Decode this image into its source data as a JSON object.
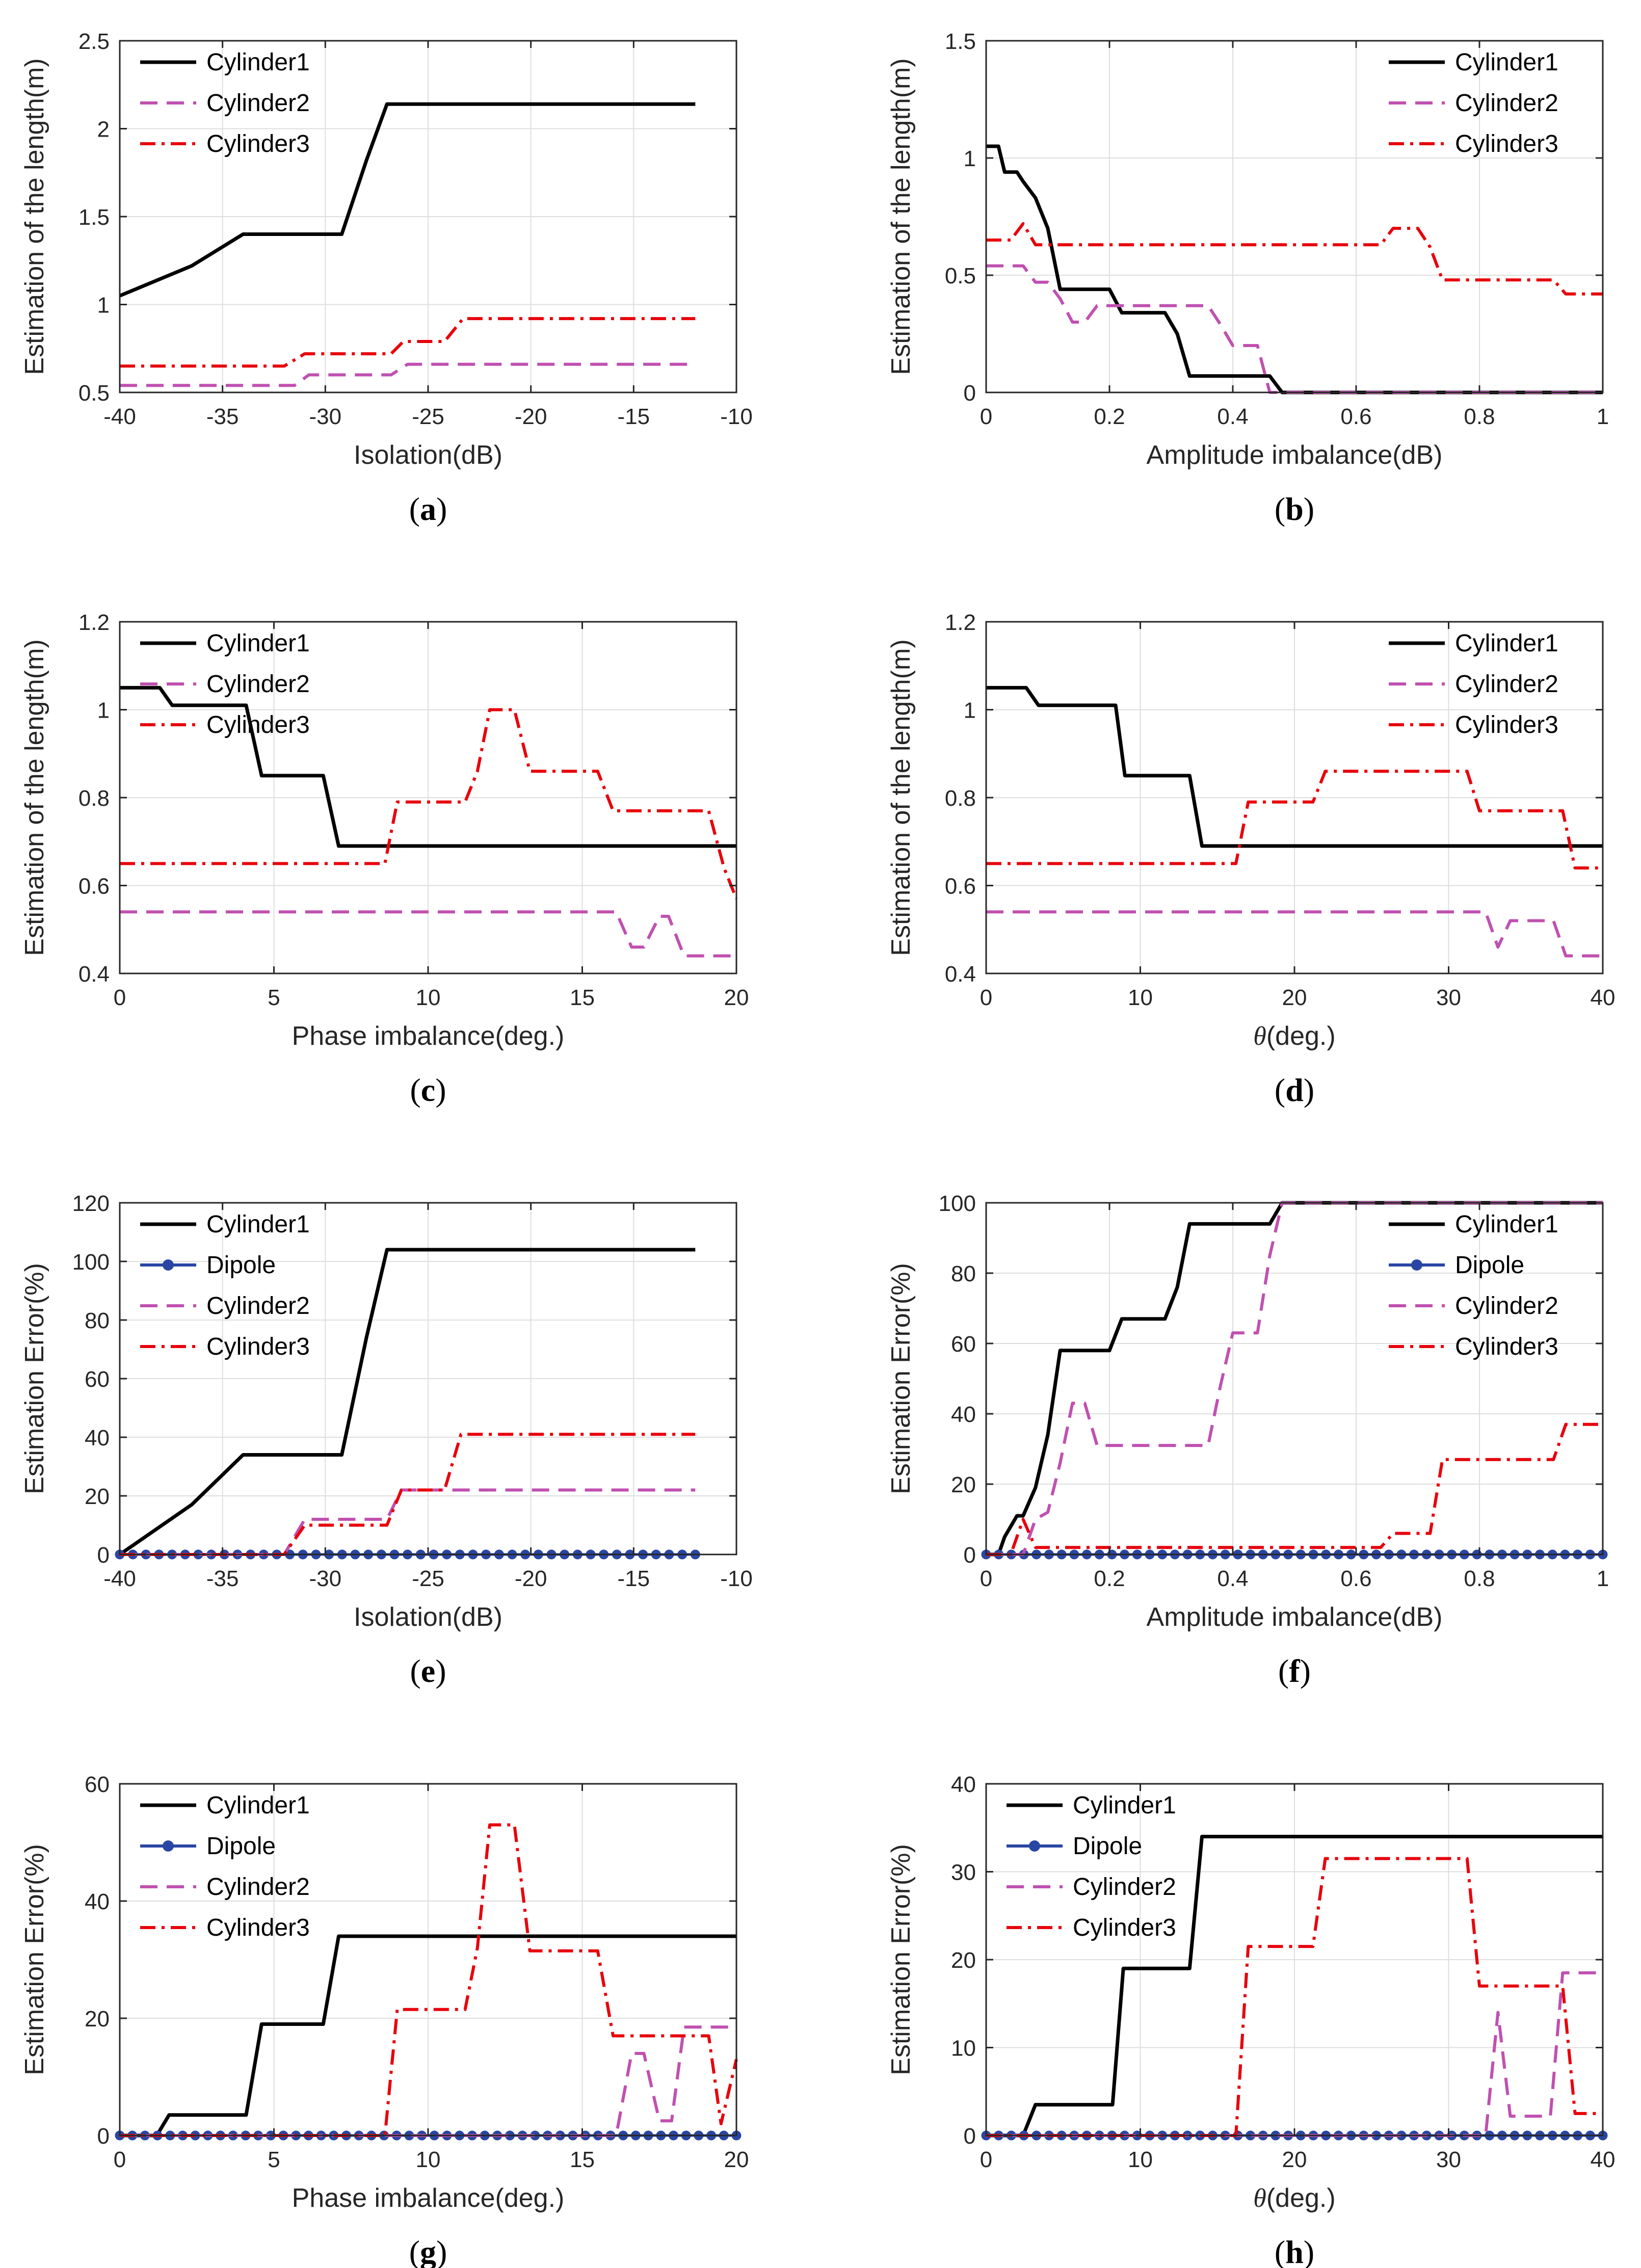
{
  "figure": {
    "series_styles": {
      "Cylinder1": {
        "color": "#000000",
        "dash": "solid"
      },
      "Cylinder2": {
        "color": "#c050b0",
        "dash": "dashed"
      },
      "Cylinder3": {
        "color": "#e8000b",
        "dash": "dashdot"
      },
      "Dipole": {
        "color": "#2a46a3",
        "dash": "solid-marker"
      }
    }
  },
  "chart_data": [
    {
      "id": "a",
      "type": "line",
      "caption_letter": "a",
      "xlabel": "Isolation(dB)",
      "ylabel": "Estimation of the length(m)",
      "xlabel_italic_prefix": "",
      "xlim": [
        -40,
        -10
      ],
      "ylim": [
        0.5,
        2.5
      ],
      "xticks": [
        -40,
        -35,
        -30,
        -25,
        -20,
        -15,
        -10
      ],
      "yticks": [
        0.5,
        1,
        1.5,
        2,
        2.5
      ],
      "xtick_labels": [
        "-40",
        "-35",
        "-30",
        "-25",
        "-20",
        "-15",
        "-10"
      ],
      "ytick_labels": [
        "0.5",
        "1",
        "1.5",
        "2",
        "2.5"
      ],
      "legend": [
        "Cylinder1",
        "Cylinder2",
        "Cylinder3"
      ],
      "series": [
        {
          "name": "Cylinder1",
          "x": [
            -40,
            -36.5,
            -34,
            -30,
            -29.2,
            -28,
            -27,
            -12
          ],
          "y": [
            1.05,
            1.22,
            1.4,
            1.4,
            1.4,
            1.82,
            2.14,
            2.14
          ]
        },
        {
          "name": "Cylinder2",
          "x": [
            -40,
            -31.5,
            -30.8,
            -26.8,
            -26,
            -12
          ],
          "y": [
            0.54,
            0.54,
            0.6,
            0.6,
            0.66,
            0.66
          ]
        },
        {
          "name": "Cylinder3",
          "x": [
            -40,
            -32,
            -31,
            -26.8,
            -26.2,
            -24.2,
            -23.3,
            -12
          ],
          "y": [
            0.65,
            0.65,
            0.72,
            0.72,
            0.79,
            0.79,
            0.92,
            0.92
          ]
        }
      ]
    },
    {
      "id": "b",
      "type": "line",
      "caption_letter": "b",
      "xlabel": "Amplitude imbalance(dB)",
      "ylabel": "Estimation of the length(m)",
      "xlabel_italic_prefix": "",
      "xlim": [
        0,
        1
      ],
      "ylim": [
        0,
        1.5
      ],
      "xticks": [
        0,
        0.2,
        0.4,
        0.6,
        0.8,
        1
      ],
      "yticks": [
        0,
        0.5,
        1,
        1.5
      ],
      "xtick_labels": [
        "0",
        "0.2",
        "0.4",
        "0.6",
        "0.8",
        "1"
      ],
      "ytick_labels": [
        "0",
        "0.5",
        "1",
        "1.5"
      ],
      "legend": [
        "Cylinder1",
        "Cylinder2",
        "Cylinder3"
      ],
      "series": [
        {
          "name": "Cylinder1",
          "x": [
            0,
            0.02,
            0.03,
            0.05,
            0.06,
            0.08,
            0.1,
            0.12,
            0.2,
            0.22,
            0.29,
            0.31,
            0.33,
            0.46,
            0.48,
            1.0
          ],
          "y": [
            1.05,
            1.05,
            0.94,
            0.94,
            0.9,
            0.83,
            0.7,
            0.44,
            0.44,
            0.34,
            0.34,
            0.25,
            0.07,
            0.07,
            0.0,
            0.0
          ]
        },
        {
          "name": "Cylinder2",
          "x": [
            0,
            0.06,
            0.08,
            0.1,
            0.12,
            0.14,
            0.16,
            0.18,
            0.2,
            0.36,
            0.38,
            0.4,
            0.44,
            0.46,
            1.0
          ],
          "y": [
            0.54,
            0.54,
            0.47,
            0.47,
            0.4,
            0.3,
            0.3,
            0.37,
            0.37,
            0.37,
            0.29,
            0.2,
            0.2,
            0.0,
            0.0
          ]
        },
        {
          "name": "Cylinder3",
          "x": [
            0,
            0.04,
            0.06,
            0.08,
            0.64,
            0.66,
            0.7,
            0.72,
            0.74,
            0.92,
            0.94,
            1.0
          ],
          "y": [
            0.65,
            0.65,
            0.72,
            0.63,
            0.63,
            0.7,
            0.7,
            0.62,
            0.48,
            0.48,
            0.42,
            0.42
          ]
        }
      ]
    },
    {
      "id": "c",
      "type": "line",
      "caption_letter": "c",
      "xlabel": "Phase imbalance(deg.)",
      "ylabel": "Estimation of the length(m)",
      "xlabel_italic_prefix": "",
      "xlim": [
        0,
        20
      ],
      "ylim": [
        0.4,
        1.2
      ],
      "xticks": [
        0,
        5,
        10,
        15,
        20
      ],
      "yticks": [
        0.4,
        0.6,
        0.8,
        1,
        1.2
      ],
      "xtick_labels": [
        "0",
        "5",
        "10",
        "15",
        "20"
      ],
      "ytick_labels": [
        "0.4",
        "0.6",
        "0.8",
        "1",
        "1.2"
      ],
      "legend": [
        "Cylinder1",
        "Cylinder2",
        "Cylinder3"
      ],
      "series": [
        {
          "name": "Cylinder1",
          "x": [
            0,
            1.3,
            1.7,
            4.1,
            4.6,
            6.6,
            7.1,
            20
          ],
          "y": [
            1.05,
            1.05,
            1.01,
            1.01,
            0.85,
            0.85,
            0.69,
            0.69
          ]
        },
        {
          "name": "Cylinder2",
          "x": [
            0,
            16.1,
            16.6,
            17.0,
            17.5,
            17.8,
            18.3,
            20
          ],
          "y": [
            0.54,
            0.54,
            0.46,
            0.46,
            0.53,
            0.53,
            0.44,
            0.44
          ]
        },
        {
          "name": "Cylinder3",
          "x": [
            0,
            8.6,
            9.0,
            11.2,
            11.6,
            12.0,
            12.8,
            13.3,
            15.5,
            16.0,
            19.1,
            19.6,
            20
          ],
          "y": [
            0.65,
            0.65,
            0.79,
            0.79,
            0.86,
            1.0,
            1.0,
            0.86,
            0.86,
            0.77,
            0.77,
            0.64,
            0.57
          ]
        }
      ]
    },
    {
      "id": "d",
      "type": "line",
      "caption_letter": "d",
      "xlabel": "(deg.)",
      "ylabel": "Estimation of the length(m)",
      "xlabel_italic_prefix": "θ",
      "xlim": [
        0,
        40
      ],
      "ylim": [
        0.4,
        1.2
      ],
      "xticks": [
        0,
        10,
        20,
        30,
        40
      ],
      "yticks": [
        0.4,
        0.6,
        0.8,
        1,
        1.2
      ],
      "xtick_labels": [
        "0",
        "10",
        "20",
        "30",
        "40"
      ],
      "ytick_labels": [
        "0.4",
        "0.6",
        "0.8",
        "1",
        "1.2"
      ],
      "legend": [
        "Cylinder1",
        "Cylinder2",
        "Cylinder3"
      ],
      "series": [
        {
          "name": "Cylinder1",
          "x": [
            0,
            2.6,
            3.4,
            8.4,
            9.0,
            13.2,
            14.0,
            40
          ],
          "y": [
            1.05,
            1.05,
            1.01,
            1.01,
            0.85,
            0.85,
            0.69,
            0.69
          ]
        },
        {
          "name": "Cylinder2",
          "x": [
            0,
            32.4,
            33.2,
            34.0,
            36.8,
            37.6,
            38.4,
            40
          ],
          "y": [
            0.54,
            0.54,
            0.46,
            0.52,
            0.52,
            0.44,
            0.44,
            0.44
          ]
        },
        {
          "name": "Cylinder3",
          "x": [
            0,
            16.2,
            17.0,
            21.2,
            22.0,
            31.2,
            32.0,
            37.4,
            38.2,
            40
          ],
          "y": [
            0.65,
            0.65,
            0.79,
            0.79,
            0.86,
            0.86,
            0.77,
            0.77,
            0.64,
            0.64
          ]
        }
      ]
    },
    {
      "id": "e",
      "type": "line",
      "caption_letter": "e",
      "xlabel": "Isolation(dB)",
      "ylabel": "Estimation Error(%)",
      "xlabel_italic_prefix": "",
      "xlim": [
        -40,
        -10
      ],
      "ylim": [
        0,
        120
      ],
      "xticks": [
        -40,
        -35,
        -30,
        -25,
        -20,
        -15,
        -10
      ],
      "yticks": [
        0,
        20,
        40,
        60,
        80,
        100,
        120
      ],
      "xtick_labels": [
        "-40",
        "-35",
        "-30",
        "-25",
        "-20",
        "-15",
        "-10"
      ],
      "ytick_labels": [
        "0",
        "20",
        "40",
        "60",
        "80",
        "100",
        "120"
      ],
      "legend": [
        "Cylinder1",
        "Dipole",
        "Cylinder2",
        "Cylinder3"
      ],
      "series": [
        {
          "name": "Cylinder1",
          "x": [
            -40,
            -36.5,
            -34,
            -30,
            -29.2,
            -28,
            -27,
            -12
          ],
          "y": [
            0,
            17,
            34,
            34,
            34,
            74,
            104,
            104
          ]
        },
        {
          "name": "Dipole",
          "x_range": [
            -40,
            -12
          ],
          "marker_count": 45,
          "y": 0
        },
        {
          "name": "Cylinder2",
          "x": [
            -40,
            -32,
            -31,
            -27,
            -26.3,
            -12
          ],
          "y": [
            0,
            0,
            12,
            12,
            22,
            22
          ]
        },
        {
          "name": "Cylinder3",
          "x": [
            -40,
            -32,
            -31,
            -27,
            -26.3,
            -24.2,
            -23.4,
            -12
          ],
          "y": [
            0,
            0,
            10,
            10,
            22,
            22,
            41,
            41
          ]
        }
      ]
    },
    {
      "id": "f",
      "type": "line",
      "caption_letter": "f",
      "xlabel": "Amplitude imbalance(dB)",
      "ylabel": "Estimation Error(%)",
      "xlabel_italic_prefix": "",
      "xlim": [
        0,
        1
      ],
      "ylim": [
        0,
        100
      ],
      "xticks": [
        0,
        0.2,
        0.4,
        0.6,
        0.8,
        1
      ],
      "yticks": [
        0,
        20,
        40,
        60,
        80,
        100
      ],
      "xtick_labels": [
        "0",
        "0.2",
        "0.4",
        "0.6",
        "0.8",
        "1"
      ],
      "ytick_labels": [
        "0",
        "20",
        "40",
        "60",
        "80",
        "100"
      ],
      "legend": [
        "Cylinder1",
        "Dipole",
        "Cylinder2",
        "Cylinder3"
      ],
      "series": [
        {
          "name": "Cylinder1",
          "x": [
            0,
            0.02,
            0.03,
            0.05,
            0.06,
            0.08,
            0.1,
            0.12,
            0.2,
            0.22,
            0.29,
            0.31,
            0.33,
            0.46,
            0.48,
            1.0
          ],
          "y": [
            0,
            0,
            5,
            11,
            11,
            19,
            34,
            58,
            58,
            67,
            67,
            76,
            94,
            94,
            100,
            100
          ]
        },
        {
          "name": "Dipole",
          "x_range": [
            0,
            1
          ],
          "marker_count": 50,
          "y": 0
        },
        {
          "name": "Cylinder2",
          "x": [
            0,
            0.06,
            0.08,
            0.1,
            0.12,
            0.14,
            0.16,
            0.18,
            0.2,
            0.36,
            0.38,
            0.4,
            0.44,
            0.46,
            0.48,
            1.0
          ],
          "y": [
            0,
            0,
            10,
            12,
            26,
            43,
            43,
            31,
            31,
            31,
            48,
            63,
            63,
            85,
            100,
            100
          ]
        },
        {
          "name": "Cylinder3",
          "x": [
            0,
            0.04,
            0.06,
            0.08,
            0.64,
            0.66,
            0.7,
            0.72,
            0.74,
            0.92,
            0.94,
            1.0
          ],
          "y": [
            0,
            0,
            10,
            2,
            2,
            6,
            6,
            6,
            27,
            27,
            37,
            37
          ]
        }
      ]
    },
    {
      "id": "g",
      "type": "line",
      "caption_letter": "g",
      "xlabel": "Phase imbalance(deg.)",
      "ylabel": "Estimation Error(%)",
      "xlabel_italic_prefix": "",
      "xlim": [
        0,
        20
      ],
      "ylim": [
        0,
        60
      ],
      "xticks": [
        0,
        5,
        10,
        15,
        20
      ],
      "yticks": [
        0,
        20,
        40,
        60
      ],
      "xtick_labels": [
        "0",
        "5",
        "10",
        "15",
        "20"
      ],
      "ytick_labels": [
        "0",
        "20",
        "40",
        "60"
      ],
      "legend": [
        "Cylinder1",
        "Dipole",
        "Cylinder2",
        "Cylinder3"
      ],
      "series": [
        {
          "name": "Cylinder1",
          "x": [
            0,
            1.2,
            1.6,
            4.1,
            4.6,
            6.6,
            7.1,
            20
          ],
          "y": [
            0,
            0,
            3.5,
            3.5,
            19,
            19,
            34,
            34
          ]
        },
        {
          "name": "Dipole",
          "x_range": [
            0,
            20
          ],
          "marker_count": 50,
          "y": 0
        },
        {
          "name": "Cylinder2",
          "x": [
            0,
            16.1,
            16.6,
            17.0,
            17.5,
            17.9,
            18.3,
            20
          ],
          "y": [
            0,
            0,
            14,
            14,
            2.5,
            2.5,
            18.5,
            18.5
          ]
        },
        {
          "name": "Cylinder3",
          "x": [
            0,
            8.6,
            9.0,
            11.2,
            11.6,
            12.0,
            12.8,
            13.3,
            15.5,
            16.0,
            19.1,
            19.5,
            20
          ],
          "y": [
            0,
            0,
            21.5,
            21.5,
            32,
            53,
            53,
            31.5,
            31.5,
            17,
            17,
            2,
            13
          ]
        }
      ]
    },
    {
      "id": "h",
      "type": "line",
      "caption_letter": "h",
      "xlabel": "(deg.)",
      "ylabel": "Estimation Error(%)",
      "xlabel_italic_prefix": "θ",
      "xlim": [
        0,
        40
      ],
      "ylim": [
        0,
        40
      ],
      "xticks": [
        0,
        10,
        20,
        30,
        40
      ],
      "yticks": [
        0,
        10,
        20,
        30,
        40
      ],
      "xtick_labels": [
        "0",
        "10",
        "20",
        "30",
        "40"
      ],
      "ytick_labels": [
        "0",
        "10",
        "20",
        "30",
        "40"
      ],
      "legend": [
        "Cylinder1",
        "Dipole",
        "Cylinder2",
        "Cylinder3"
      ],
      "series": [
        {
          "name": "Cylinder1",
          "x": [
            0,
            2.4,
            3.2,
            8.2,
            8.9,
            13.2,
            14.0,
            40
          ],
          "y": [
            0,
            0,
            3.5,
            3.5,
            19,
            19,
            34,
            34
          ]
        },
        {
          "name": "Dipole",
          "x_range": [
            0,
            40
          ],
          "marker_count": 50,
          "y": 0
        },
        {
          "name": "Cylinder2",
          "x": [
            0,
            32.4,
            33.2,
            34.0,
            35.8,
            36.6,
            37.4,
            40
          ],
          "y": [
            0,
            0,
            14,
            2.2,
            2.2,
            2.2,
            18.5,
            18.5
          ]
        },
        {
          "name": "Cylinder3",
          "x": [
            0,
            16.2,
            17.0,
            21.2,
            22.0,
            31.2,
            32.0,
            37.4,
            38.2,
            40
          ],
          "y": [
            0,
            0,
            21.5,
            21.5,
            31.5,
            31.5,
            17,
            17,
            2.5,
            2.5
          ]
        }
      ]
    }
  ]
}
